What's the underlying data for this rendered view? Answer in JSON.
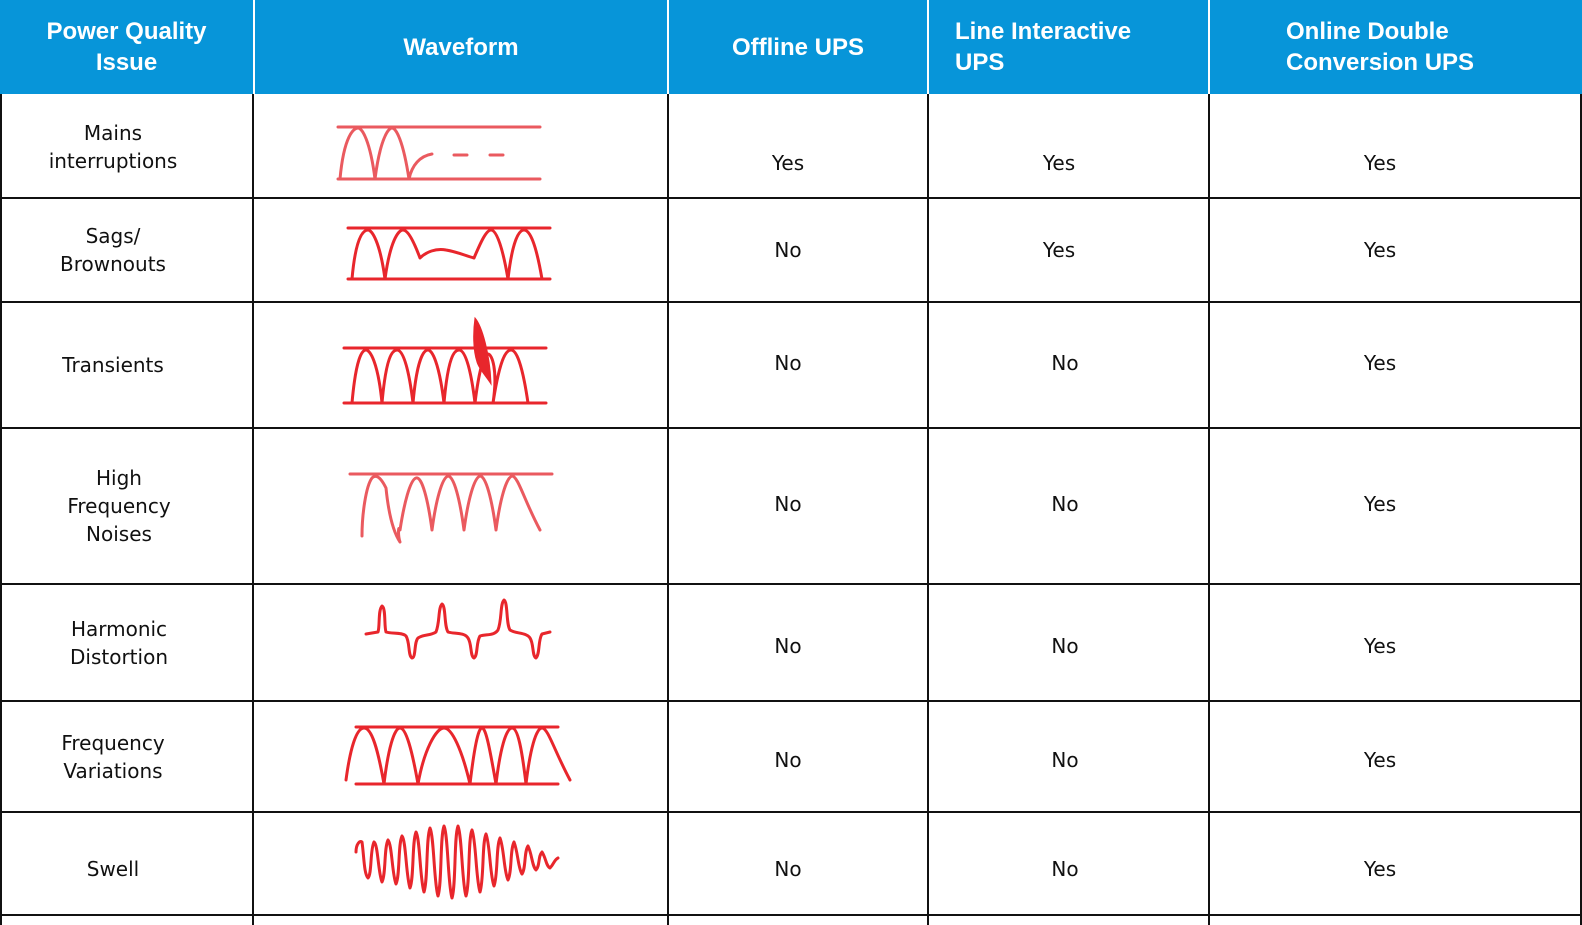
{
  "table": {
    "header": {
      "issue": "Power Quality Issue",
      "waveform": "Waveform",
      "offline": "Offline UPS",
      "line_interactive": "Line Interactive UPS",
      "online": "Online Double Conversion UPS"
    },
    "rows": [
      {
        "issue": "Mains interruptions",
        "waveform_icon": "interruption-waveform",
        "offline": "Yes",
        "line_interactive": "Yes",
        "online": "Yes"
      },
      {
        "issue": "Sags/ Brownouts",
        "waveform_icon": "sag-waveform",
        "offline": "No",
        "line_interactive": "Yes",
        "online": "Yes"
      },
      {
        "issue": "Transients",
        "waveform_icon": "transient-waveform",
        "offline": "No",
        "line_interactive": "No",
        "online": "Yes"
      },
      {
        "issue": "High Frequency Noises",
        "waveform_icon": "noise-waveform",
        "offline": "No",
        "line_interactive": "No",
        "online": "Yes"
      },
      {
        "issue": "Harmonic Distortion",
        "waveform_icon": "harmonic-waveform",
        "offline": "No",
        "line_interactive": "No",
        "online": "Yes"
      },
      {
        "issue": "Frequency Variations",
        "waveform_icon": "frequency-variation-waveform",
        "offline": "No",
        "line_interactive": "No",
        "online": "Yes"
      },
      {
        "issue": "Swell",
        "waveform_icon": "swell-waveform",
        "offline": "No",
        "line_interactive": "No",
        "online": "Yes"
      }
    ]
  },
  "colors": {
    "header_bg": "#0795d9",
    "header_text": "#ffffff",
    "grid": "#111111",
    "wave_primary": "#e8262c",
    "wave_light": "#ea5a5f"
  }
}
